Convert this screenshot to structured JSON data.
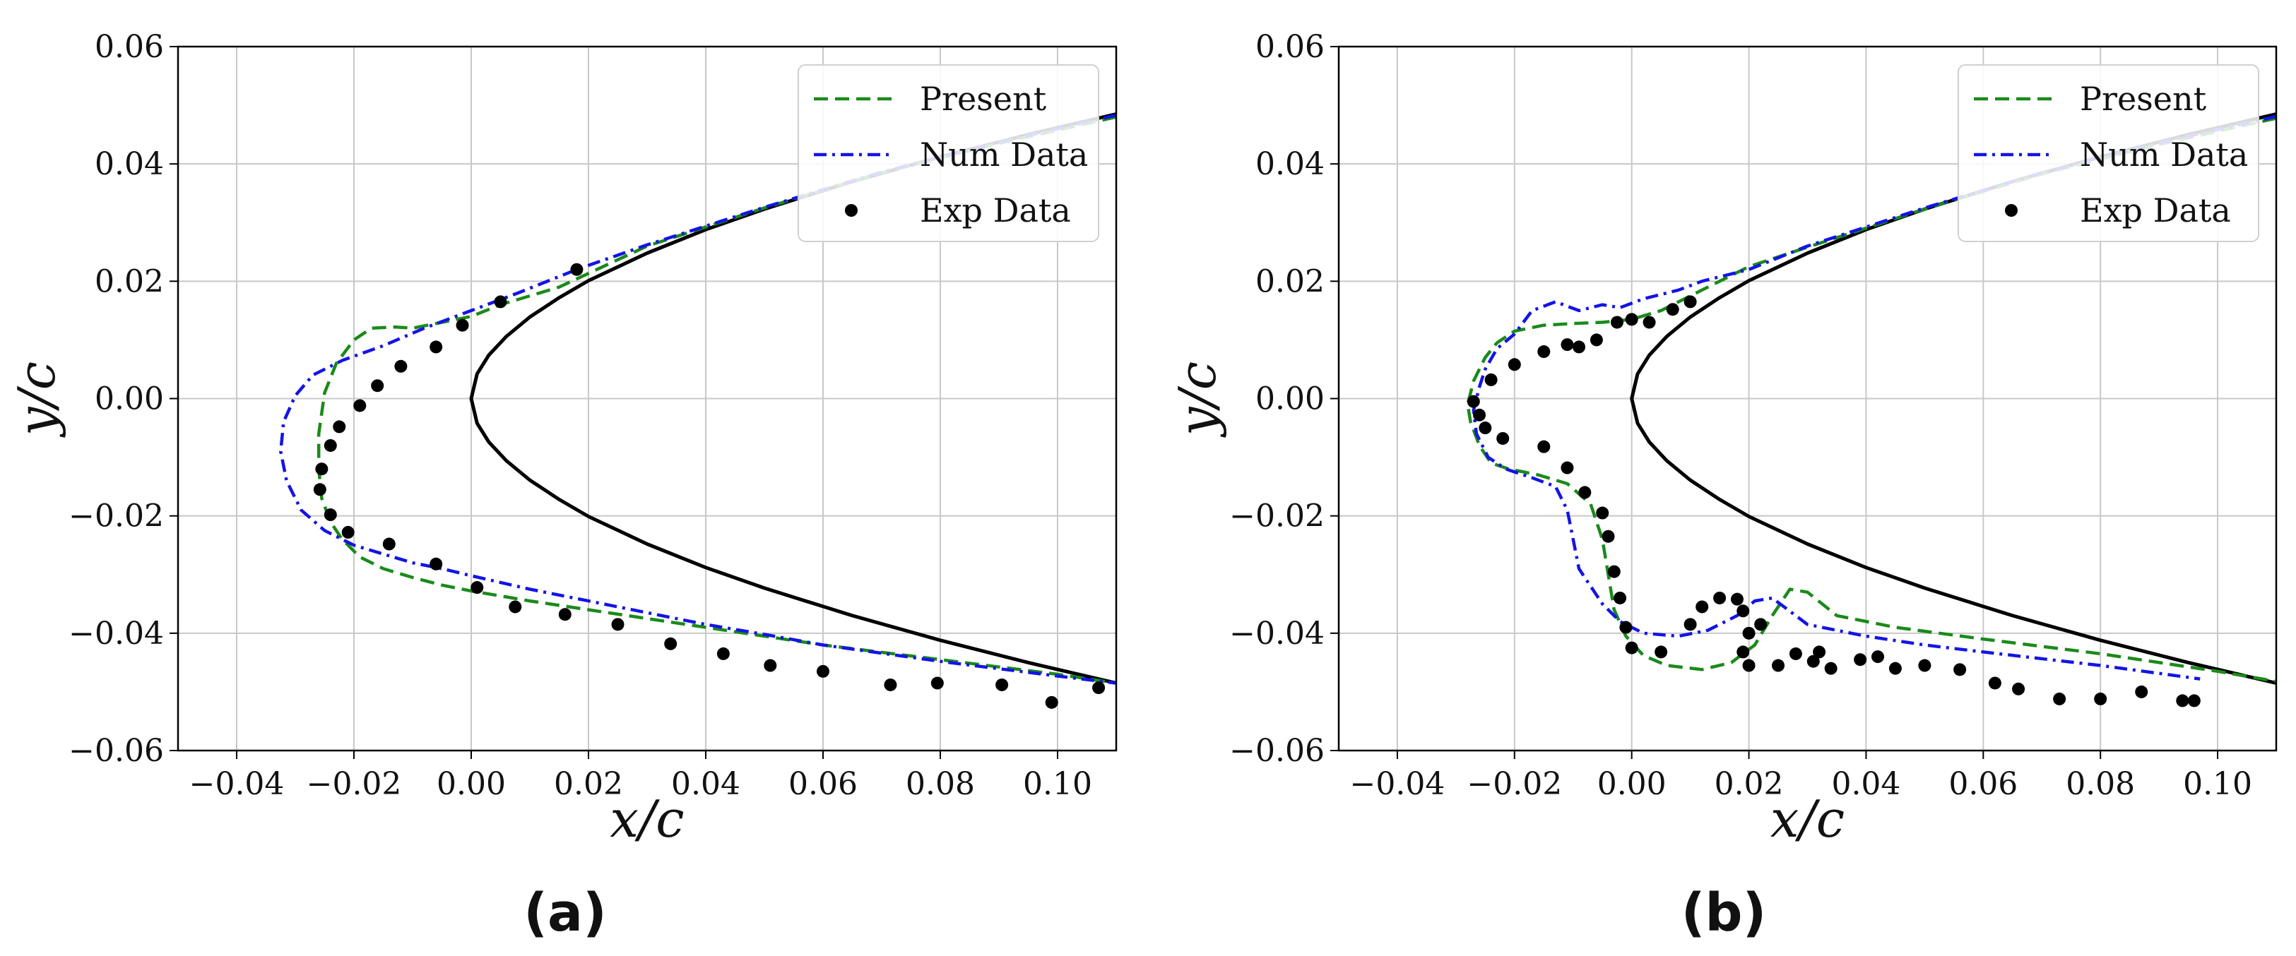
{
  "chart_data": [
    {
      "type": "line",
      "panel_label": "(a)",
      "xlabel": "x/c",
      "ylabel": "y/c",
      "xlim": [
        -0.05,
        0.11
      ],
      "ylim": [
        -0.06,
        0.06
      ],
      "grid": true,
      "legend_position": "top-right",
      "xticks": [
        -0.04,
        -0.02,
        0.0,
        0.02,
        0.04,
        0.06,
        0.08,
        0.1
      ],
      "xtick_labels": [
        "−0.04",
        "−0.02",
        "0.00",
        "0.02",
        "0.04",
        "0.06",
        "0.08",
        "0.10"
      ],
      "yticks": [
        -0.06,
        -0.04,
        -0.02,
        0.0,
        0.02,
        0.04,
        0.06
      ],
      "ytick_labels": [
        "−0.06",
        "−0.04",
        "−0.02",
        "0.00",
        "0.02",
        "0.04",
        "0.06"
      ],
      "airfoil": {
        "name": "Airfoil",
        "color": "#000000",
        "x": [
          0.11,
          0.095,
          0.08,
          0.065,
          0.05,
          0.04,
          0.03,
          0.02,
          0.015,
          0.01,
          0.006,
          0.003,
          0.001,
          0.0,
          0.001,
          0.003,
          0.006,
          0.01,
          0.015,
          0.02,
          0.03,
          0.04,
          0.05,
          0.065,
          0.08,
          0.095,
          0.11
        ],
        "y": [
          0.0485,
          0.045,
          0.0412,
          0.037,
          0.0323,
          0.0288,
          0.0248,
          0.0201,
          0.0172,
          0.0139,
          0.0106,
          0.0074,
          0.0042,
          0.0,
          -0.0042,
          -0.0074,
          -0.0106,
          -0.0139,
          -0.0172,
          -0.0201,
          -0.0248,
          -0.0288,
          -0.0323,
          -0.037,
          -0.0412,
          -0.045,
          -0.0485
        ]
      },
      "series": [
        {
          "name": "Present",
          "style": "dashed",
          "color": "#1a8a1a",
          "x": [
            0.11,
            0.09,
            0.07,
            0.05,
            0.03,
            0.015,
            0.005,
            0.0,
            -0.005,
            -0.01,
            -0.013,
            -0.017,
            -0.02,
            -0.023,
            -0.025,
            -0.026,
            -0.026,
            -0.0255,
            -0.024,
            -0.022,
            -0.019,
            -0.015,
            -0.01,
            -0.005,
            0.0,
            0.01,
            0.02,
            0.03,
            0.04,
            0.05,
            0.06,
            0.08,
            0.1,
            0.11
          ],
          "y": [
            0.048,
            0.0435,
            0.0385,
            0.0325,
            0.026,
            0.019,
            0.016,
            0.014,
            0.013,
            0.012,
            0.0122,
            0.012,
            0.01,
            0.006,
            0.001,
            -0.006,
            -0.012,
            -0.017,
            -0.021,
            -0.024,
            -0.027,
            -0.029,
            -0.0305,
            -0.0318,
            -0.0328,
            -0.0345,
            -0.036,
            -0.0375,
            -0.039,
            -0.0405,
            -0.042,
            -0.0445,
            -0.047,
            -0.0485
          ]
        },
        {
          "name": "Num Data",
          "style": "dashdot",
          "color": "#1414e6",
          "x": [
            0.11,
            0.09,
            0.07,
            0.05,
            0.03,
            0.018,
            0.008,
            0.0,
            -0.008,
            -0.015,
            -0.022,
            -0.027,
            -0.03,
            -0.032,
            -0.0325,
            -0.0315,
            -0.029,
            -0.025,
            -0.02,
            -0.015,
            -0.01,
            -0.005,
            0.0,
            0.01,
            0.02,
            0.03,
            0.04,
            0.05,
            0.06,
            0.08,
            0.1,
            0.11
          ],
          "y": [
            0.0483,
            0.0437,
            0.0386,
            0.0326,
            0.0262,
            0.022,
            0.018,
            0.015,
            0.012,
            0.009,
            0.0065,
            0.004,
            0.0005,
            -0.004,
            -0.009,
            -0.014,
            -0.019,
            -0.0225,
            -0.025,
            -0.0265,
            -0.028,
            -0.029,
            -0.0302,
            -0.0325,
            -0.0345,
            -0.0365,
            -0.0385,
            -0.0402,
            -0.042,
            -0.0448,
            -0.0473,
            -0.0485
          ]
        },
        {
          "name": "Exp Data",
          "style": "markers",
          "color": "#000000",
          "x": [
            0.018,
            0.005,
            -0.0015,
            -0.006,
            -0.012,
            -0.016,
            -0.019,
            -0.0225,
            -0.024,
            -0.0255,
            -0.0258,
            -0.024,
            -0.021,
            -0.014,
            -0.006,
            0.001,
            0.0075,
            0.016,
            0.025,
            0.034,
            0.043,
            0.051,
            0.06,
            0.0715,
            0.0795,
            0.0905,
            0.099,
            0.107
          ],
          "y": [
            0.022,
            0.0165,
            0.0125,
            0.0088,
            0.0055,
            0.0022,
            -0.0012,
            -0.0048,
            -0.008,
            -0.012,
            -0.0155,
            -0.0198,
            -0.0228,
            -0.0248,
            -0.0282,
            -0.0322,
            -0.0355,
            -0.0368,
            -0.0385,
            -0.0418,
            -0.0435,
            -0.0455,
            -0.0465,
            -0.0488,
            -0.0485,
            -0.0488,
            -0.0518,
            -0.0493
          ]
        }
      ]
    },
    {
      "type": "line",
      "panel_label": "(b)",
      "xlabel": "x/c",
      "ylabel": "y/c",
      "xlim": [
        -0.05,
        0.11
      ],
      "ylim": [
        -0.06,
        0.06
      ],
      "grid": true,
      "legend_position": "top-right",
      "xticks": [
        -0.04,
        -0.02,
        0.0,
        0.02,
        0.04,
        0.06,
        0.08,
        0.1
      ],
      "xtick_labels": [
        "−0.04",
        "−0.02",
        "0.00",
        "0.02",
        "0.04",
        "0.06",
        "0.08",
        "0.10"
      ],
      "yticks": [
        -0.06,
        -0.04,
        -0.02,
        0.0,
        0.02,
        0.04,
        0.06
      ],
      "ytick_labels": [
        "−0.06",
        "−0.04",
        "−0.02",
        "0.00",
        "0.02",
        "0.04",
        "0.06"
      ],
      "airfoil": {
        "name": "Airfoil",
        "color": "#000000",
        "x": [
          0.11,
          0.095,
          0.08,
          0.065,
          0.05,
          0.04,
          0.03,
          0.02,
          0.015,
          0.01,
          0.006,
          0.003,
          0.001,
          0.0,
          0.001,
          0.003,
          0.006,
          0.01,
          0.015,
          0.02,
          0.03,
          0.04,
          0.05,
          0.065,
          0.08,
          0.095,
          0.11
        ],
        "y": [
          0.0485,
          0.045,
          0.0412,
          0.037,
          0.0323,
          0.0288,
          0.0248,
          0.0201,
          0.0172,
          0.0139,
          0.0106,
          0.0074,
          0.0042,
          0.0,
          -0.0042,
          -0.0074,
          -0.0106,
          -0.0139,
          -0.0172,
          -0.0201,
          -0.0248,
          -0.0288,
          -0.0323,
          -0.037,
          -0.0412,
          -0.045,
          -0.0485
        ]
      },
      "series": [
        {
          "name": "Present",
          "style": "dashed",
          "color": "#1a8a1a",
          "x": [
            0.11,
            0.09,
            0.07,
            0.05,
            0.03,
            0.02,
            0.012,
            0.005,
            0.0,
            -0.005,
            -0.01,
            -0.015,
            -0.02,
            -0.023,
            -0.025,
            -0.027,
            -0.028,
            -0.0275,
            -0.026,
            -0.024,
            -0.021,
            -0.016,
            -0.011,
            -0.007,
            -0.005,
            -0.004,
            -0.003,
            -0.001,
            0.002,
            0.006,
            0.012,
            0.017,
            0.021,
            0.024,
            0.027,
            0.03,
            0.035,
            0.045,
            0.06,
            0.08,
            0.1,
            0.11
          ],
          "y": [
            0.0478,
            0.0433,
            0.0383,
            0.0323,
            0.0258,
            0.0225,
            0.0185,
            0.015,
            0.0135,
            0.013,
            0.0128,
            0.0125,
            0.0115,
            0.0095,
            0.007,
            0.003,
            -0.001,
            -0.004,
            -0.008,
            -0.011,
            -0.012,
            -0.013,
            -0.0145,
            -0.018,
            -0.024,
            -0.03,
            -0.036,
            -0.0405,
            -0.0438,
            -0.0455,
            -0.0462,
            -0.045,
            -0.042,
            -0.037,
            -0.0325,
            -0.033,
            -0.037,
            -0.039,
            -0.041,
            -0.0435,
            -0.0465,
            -0.0482
          ]
        },
        {
          "name": "Num Data",
          "style": "dashdot",
          "color": "#1414e6",
          "x": [
            0.11,
            0.09,
            0.07,
            0.05,
            0.03,
            0.02,
            0.012,
            0.008,
            0.002,
            -0.002,
            -0.005,
            -0.009,
            -0.013,
            -0.017,
            -0.02,
            -0.023,
            -0.025,
            -0.026,
            -0.027,
            -0.0265,
            -0.0245,
            -0.0215,
            -0.017,
            -0.013,
            -0.011,
            -0.01,
            -0.009,
            -0.007,
            -0.005,
            -0.002,
            0.002,
            0.008,
            0.013,
            0.018,
            0.021,
            0.024,
            0.03,
            0.04,
            0.05,
            0.06,
            0.08,
            0.097
          ],
          "y": [
            0.0481,
            0.0436,
            0.0385,
            0.0325,
            0.026,
            0.022,
            0.02,
            0.0185,
            0.017,
            0.0155,
            0.016,
            0.015,
            0.0165,
            0.015,
            0.011,
            0.0085,
            0.005,
            0.002,
            -0.002,
            -0.006,
            -0.01,
            -0.012,
            -0.0135,
            -0.015,
            -0.019,
            -0.024,
            -0.029,
            -0.032,
            -0.035,
            -0.038,
            -0.04,
            -0.0405,
            -0.0395,
            -0.037,
            -0.0345,
            -0.034,
            -0.0385,
            -0.0405,
            -0.042,
            -0.0432,
            -0.0455,
            -0.0478
          ]
        },
        {
          "name": "Exp Data",
          "style": "markers",
          "color": "#000000",
          "x": [
            0.01,
            0.007,
            0.003,
            0.0,
            -0.0025,
            -0.006,
            -0.009,
            -0.011,
            -0.015,
            -0.02,
            -0.024,
            -0.026,
            -0.027,
            -0.025,
            -0.022,
            -0.015,
            -0.011,
            -0.008,
            -0.005,
            -0.004,
            -0.003,
            -0.002,
            -0.001,
            0.0,
            0.005,
            0.01,
            0.012,
            0.015,
            0.018,
            0.019,
            0.02,
            0.019,
            0.02,
            0.022,
            0.025,
            0.028,
            0.031,
            0.032,
            0.034,
            0.039,
            0.042,
            0.045,
            0.05,
            0.056,
            0.062,
            0.066,
            0.073,
            0.08,
            0.087,
            0.094,
            0.096
          ],
          "y": [
            0.0165,
            0.0152,
            0.013,
            0.0135,
            0.013,
            0.01,
            0.0088,
            0.0092,
            0.008,
            0.0058,
            0.0032,
            -0.0028,
            -0.0005,
            -0.005,
            -0.0068,
            -0.0082,
            -0.0118,
            -0.016,
            -0.0195,
            -0.0235,
            -0.0295,
            -0.034,
            -0.039,
            -0.0425,
            -0.0432,
            -0.0385,
            -0.0355,
            -0.034,
            -0.0342,
            -0.0362,
            -0.04,
            -0.0432,
            -0.0455,
            -0.0385,
            -0.0455,
            -0.0435,
            -0.0448,
            -0.0432,
            -0.046,
            -0.0445,
            -0.044,
            -0.046,
            -0.0455,
            -0.0462,
            -0.0485,
            -0.0495,
            -0.0512,
            -0.0512,
            -0.05,
            -0.0515,
            -0.0515
          ]
        }
      ]
    }
  ]
}
